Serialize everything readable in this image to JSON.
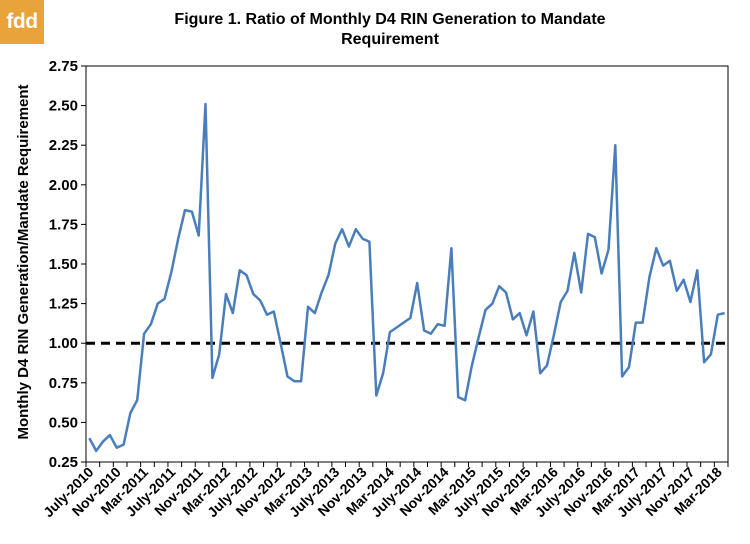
{
  "logo": {
    "text": "fdd",
    "color": "#e8a33a"
  },
  "chart_data": {
    "type": "line",
    "title_line1": "Figure  1. Ratio of Monthly  D4 RIN Generation  to Mandate",
    "title_line2": "Requirement",
    "xlabel": "",
    "ylabel": "Monthly D4 RIN Generation/Mandate Requirement",
    "ylim": [
      0.25,
      2.75
    ],
    "yticks": [
      "0.25",
      "0.50",
      "0.75",
      "1.00",
      "1.25",
      "1.50",
      "1.75",
      "2.00",
      "2.25",
      "2.50",
      "2.75"
    ],
    "grid": false,
    "line_color": "#4a7ebb",
    "reference_line": {
      "value": 1.0,
      "style": "dashed",
      "color": "#000000"
    },
    "tick_labels": [
      "July-2010",
      "Nov-2010",
      "Mar-2011",
      "July-2011",
      "Nov-2011",
      "Mar-2012",
      "July-2012",
      "Nov-2012",
      "Mar-2013",
      "July-2013",
      "Nov-2013",
      "Mar-2014",
      "July-2014",
      "Nov-2014",
      "Mar-2015",
      "July-2015",
      "Nov-2015",
      "Mar-2016",
      "July-2016",
      "Nov-2016",
      "Mar-2017",
      "July-2017",
      "Nov-2017",
      "Mar-2018"
    ],
    "series": [
      {
        "values": [
          0.4,
          0.32,
          0.38,
          0.42,
          0.34,
          0.36,
          0.56,
          0.64,
          1.06,
          1.12,
          1.25,
          1.28,
          1.45,
          1.66,
          1.84,
          1.83,
          1.68,
          2.51,
          0.78,
          0.93,
          1.31,
          1.19,
          1.46,
          1.43,
          1.31,
          1.27,
          1.18,
          1.2,
          1.0,
          0.79,
          0.76,
          0.76,
          1.23,
          1.19,
          1.32,
          1.43,
          1.63,
          1.72,
          1.61,
          1.72,
          1.66,
          1.64,
          0.67,
          0.81,
          1.07,
          1.1,
          1.13,
          1.16,
          1.38,
          1.08,
          1.06,
          1.12,
          1.11,
          1.6,
          0.66,
          0.64,
          0.86,
          1.04,
          1.21,
          1.25,
          1.36,
          1.32,
          1.15,
          1.19,
          1.05,
          1.2,
          0.81,
          0.86,
          1.05,
          1.26,
          1.33,
          1.57,
          1.32,
          1.69,
          1.67,
          1.44,
          1.59,
          2.25,
          0.79,
          0.85,
          1.13,
          1.13,
          1.42,
          1.6,
          1.49,
          1.52,
          1.33,
          1.4,
          1.26,
          1.46,
          0.88,
          0.93,
          1.18,
          1.19
        ]
      }
    ]
  }
}
